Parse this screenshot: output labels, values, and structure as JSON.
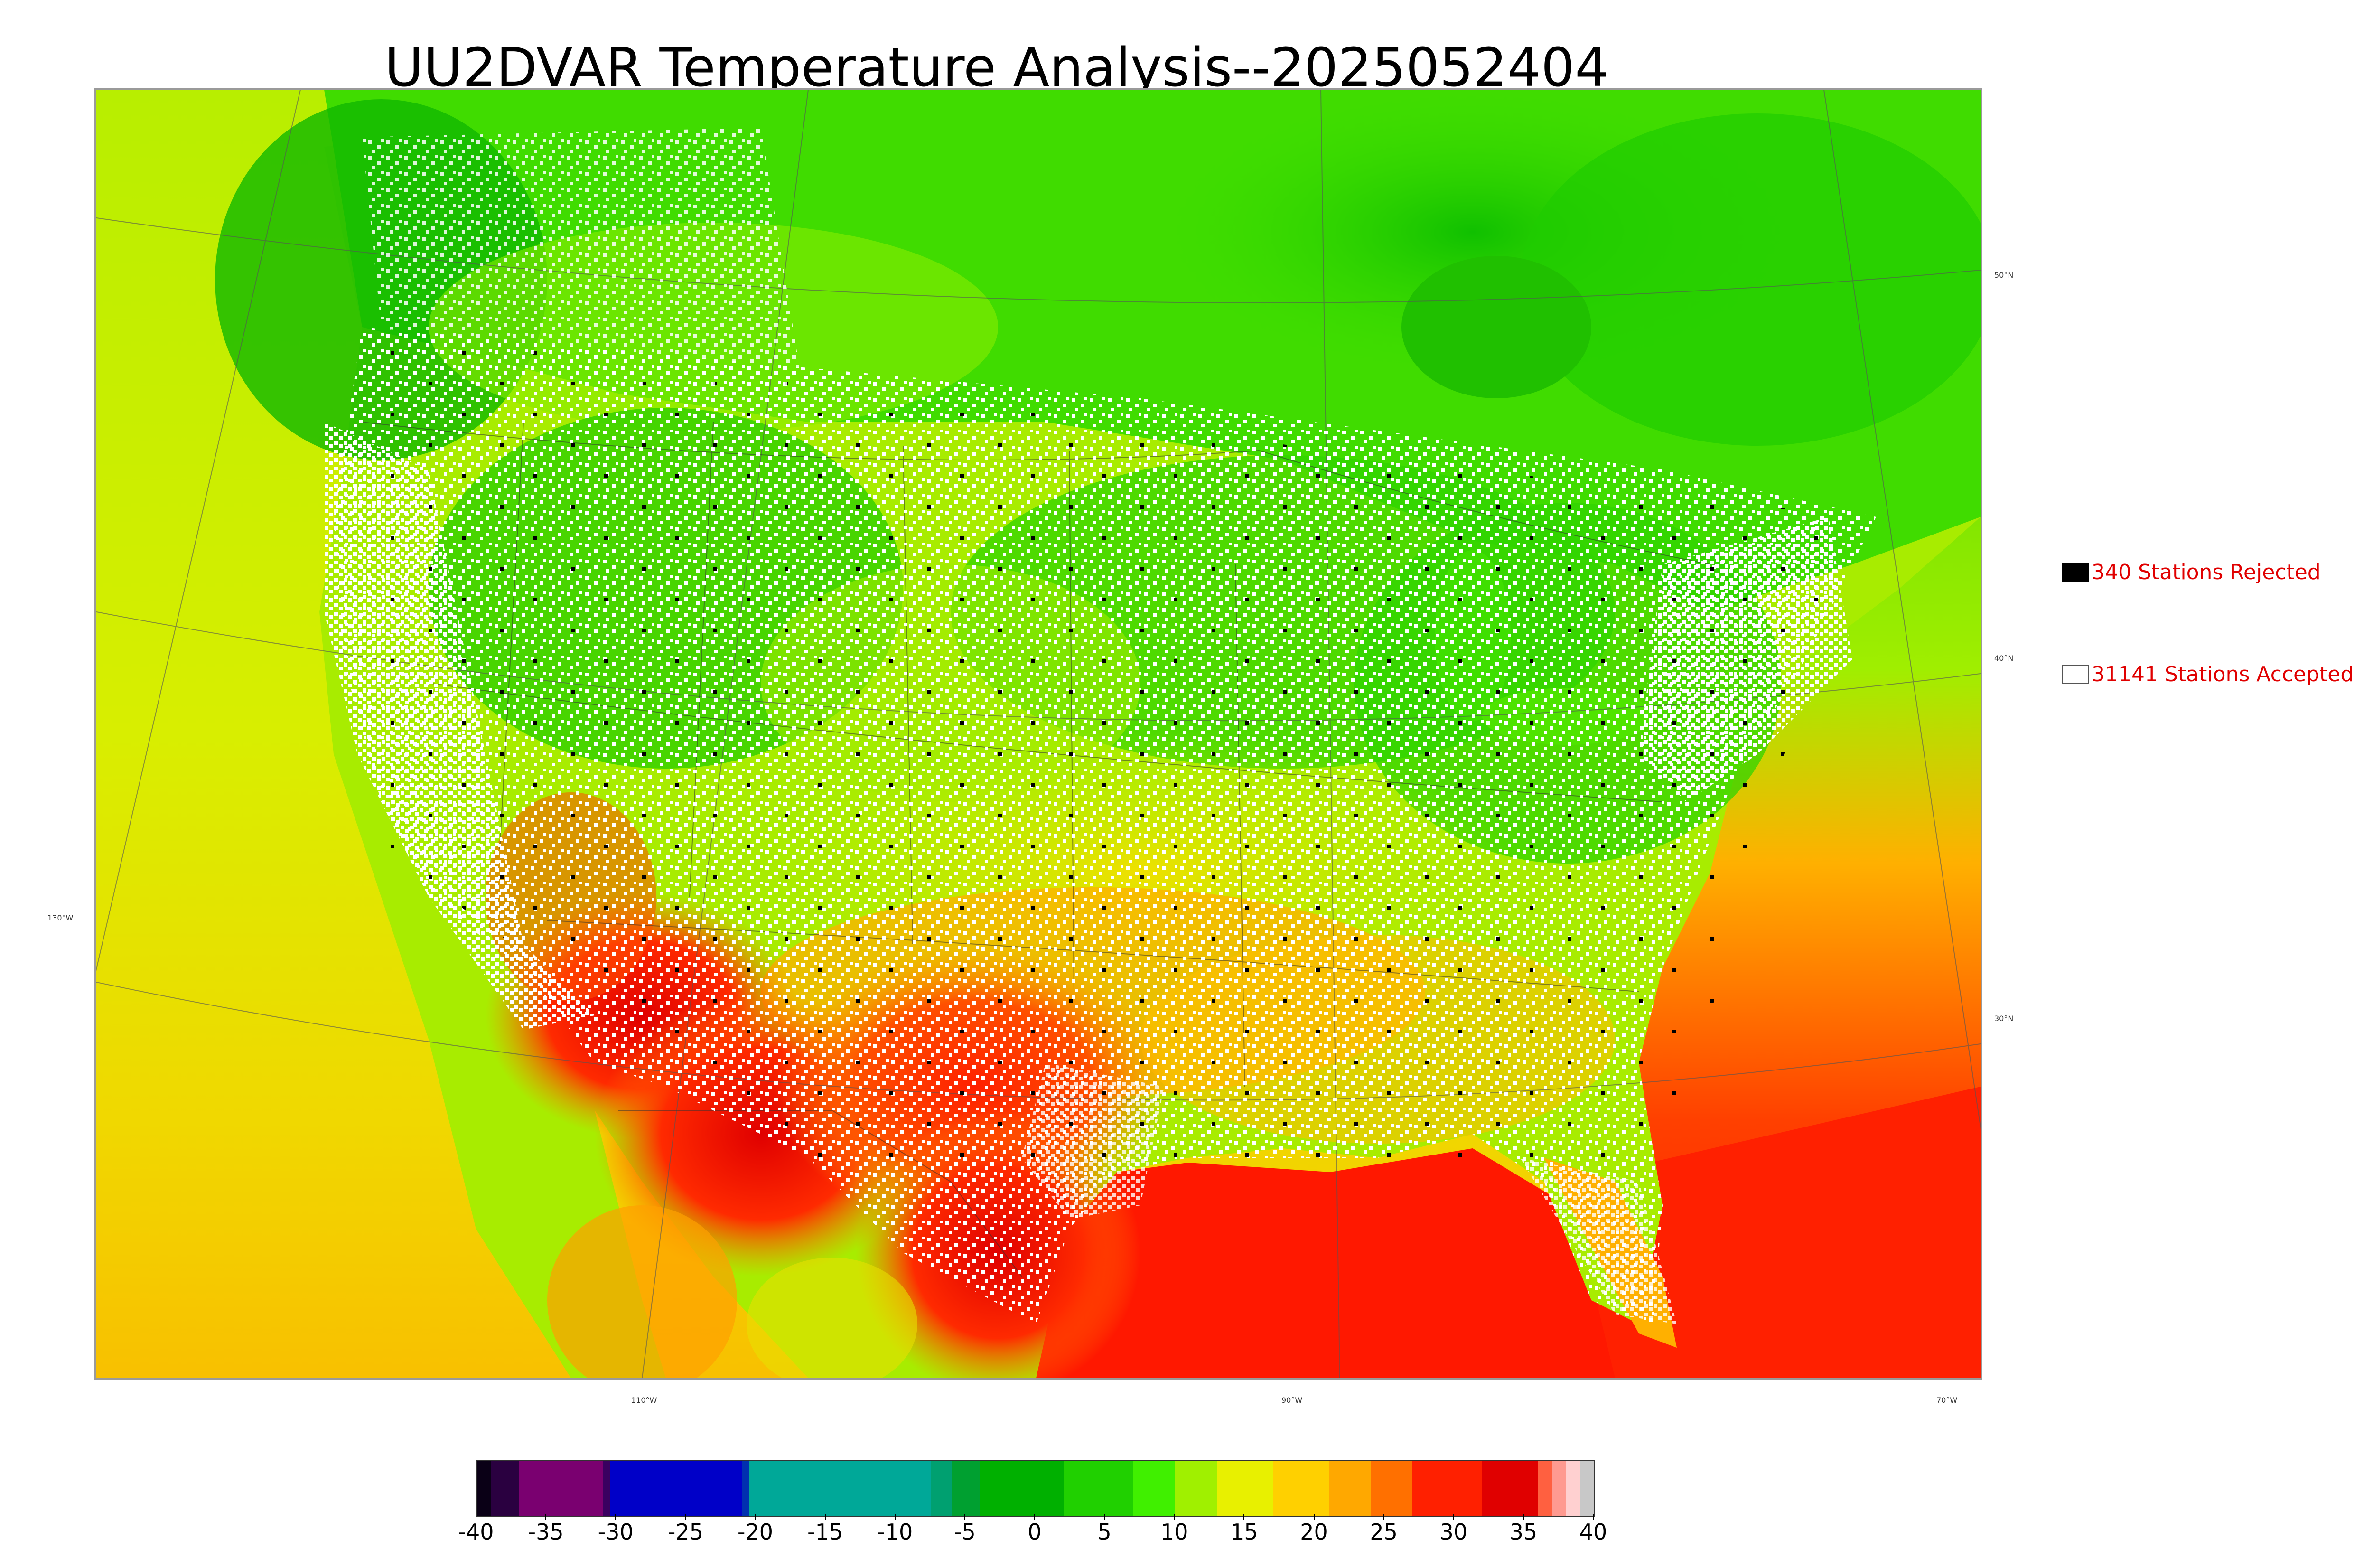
{
  "title": "UU2DVAR Temperature Analysis--2025052404",
  "map": {
    "lat_labels": [
      "50°N",
      "40°N",
      "30°N"
    ],
    "lon_labels_left": [
      "130°W"
    ],
    "lon_labels_bottom": [
      "110°W",
      "90°W",
      "70°W"
    ]
  },
  "legend": {
    "rejected": {
      "label": "340 Stations Rejected",
      "color": "#000000"
    },
    "accepted": {
      "label": "31141 Stations Accepted",
      "color": "#ffffff"
    }
  },
  "colorbar": {
    "ticks": [
      "-40",
      "-35",
      "-30",
      "-25",
      "-20",
      "-15",
      "-10",
      "-5",
      "0",
      "5",
      "10",
      "15",
      "20",
      "25",
      "30",
      "35",
      "40"
    ],
    "range": [
      -40,
      40
    ],
    "colors": [
      {
        "from": -40,
        "to": -39,
        "color": "#0a0016"
      },
      {
        "from": -39,
        "to": -37,
        "color": "#2a0040"
      },
      {
        "from": -37,
        "to": -31,
        "color": "#7a0070"
      },
      {
        "from": -31,
        "to": -30.5,
        "color": "#3a0060"
      },
      {
        "from": -30.5,
        "to": -21,
        "color": "#0000c8"
      },
      {
        "from": -21,
        "to": -20.5,
        "color": "#0030b0"
      },
      {
        "from": -20.5,
        "to": -7.5,
        "color": "#00a898"
      },
      {
        "from": -7.5,
        "to": -6,
        "color": "#00a070"
      },
      {
        "from": -6,
        "to": -4,
        "color": "#00a030"
      },
      {
        "from": -4,
        "to": 2,
        "color": "#00b000"
      },
      {
        "from": 2,
        "to": 7,
        "color": "#20d000"
      },
      {
        "from": 7,
        "to": 10,
        "color": "#40f000"
      },
      {
        "from": 10,
        "to": 13,
        "color": "#a0f000"
      },
      {
        "from": 13,
        "to": 17,
        "color": "#e8f000"
      },
      {
        "from": 17,
        "to": 21,
        "color": "#ffd000"
      },
      {
        "from": 21,
        "to": 24,
        "color": "#ffa800"
      },
      {
        "from": 24,
        "to": 27,
        "color": "#ff7000"
      },
      {
        "from": 27,
        "to": 32,
        "color": "#ff2000"
      },
      {
        "from": 32,
        "to": 36,
        "color": "#e00000"
      },
      {
        "from": 36,
        "to": 37,
        "color": "#ff6040"
      },
      {
        "from": 37,
        "to": 38,
        "color": "#ff9a90"
      },
      {
        "from": 38,
        "to": 39,
        "color": "#ffd0d0"
      },
      {
        "from": 39,
        "to": 40,
        "color": "#c8c8c8"
      }
    ]
  }
}
